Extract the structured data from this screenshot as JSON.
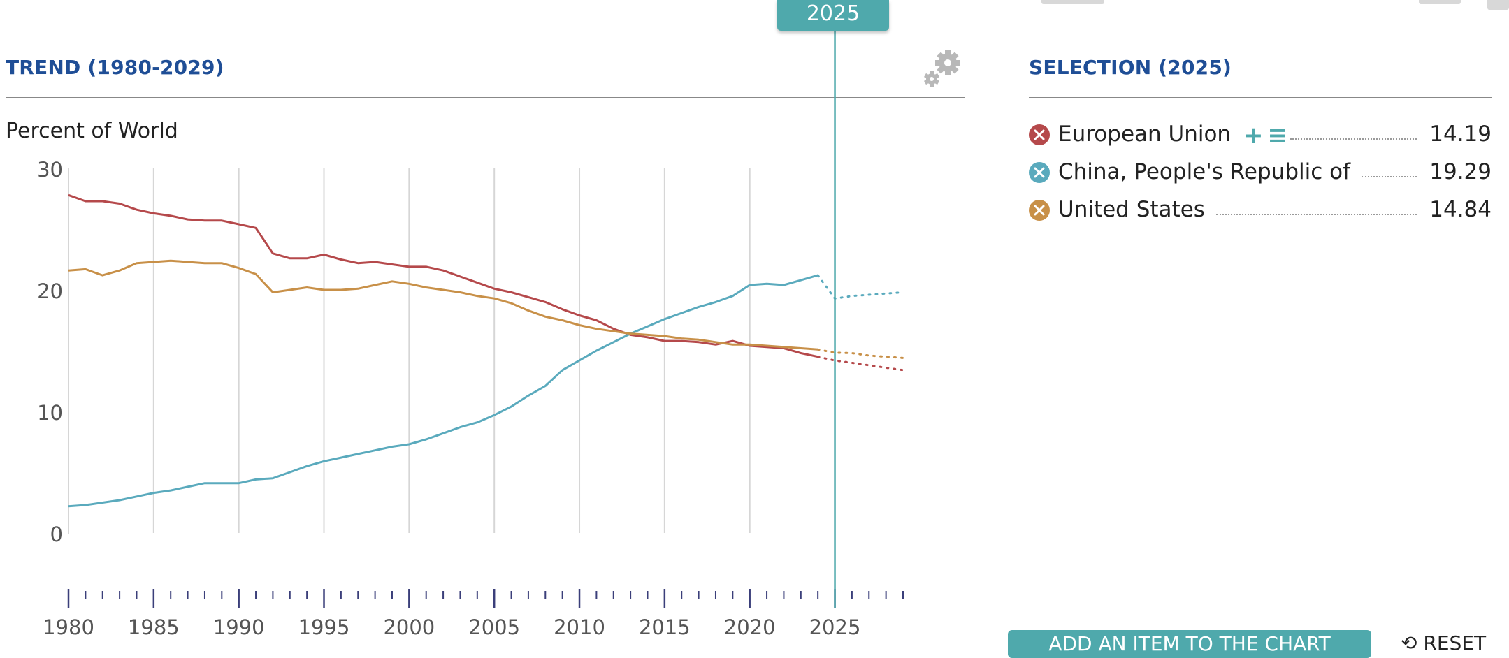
{
  "header": {
    "year_badge": "2025",
    "trend_title": "TREND (1980-2029)",
    "selection_title": "SELECTION (2025)",
    "unit_label": "Percent of World"
  },
  "legend": [
    {
      "name": "European Union",
      "value": "14.19",
      "color": "#b5494b",
      "has_tools": true
    },
    {
      "name": "China, People's Republic of",
      "value": "19.29",
      "color": "#5aaabd",
      "has_tools": false
    },
    {
      "name": "United States",
      "value": "14.84",
      "color": "#c89048",
      "has_tools": false
    }
  ],
  "actions": {
    "add_item_label": "ADD AN ITEM TO THE CHART",
    "reset_label": "RESET"
  },
  "colors": {
    "accent": "#4fa9ac",
    "title": "#1f4e96",
    "eu": "#b5494b",
    "china": "#5aaabd",
    "us": "#c89048"
  },
  "chart_data": {
    "type": "line",
    "title": "TREND (1980-2029)",
    "ylabel": "Percent of World",
    "xlabel": "",
    "xlim": [
      1980,
      2029
    ],
    "ylim": [
      0,
      30
    ],
    "yticks": [
      0,
      10,
      20,
      30
    ],
    "xticks": [
      1980,
      1985,
      1990,
      1995,
      2000,
      2005,
      2010,
      2015,
      2020,
      2025
    ],
    "selected_year": 2025,
    "projection_start": 2024,
    "grid": true,
    "series": [
      {
        "name": "European Union",
        "color": "#b5494b",
        "x": [
          1980,
          1981,
          1982,
          1983,
          1984,
          1985,
          1986,
          1987,
          1988,
          1989,
          1990,
          1991,
          1992,
          1993,
          1994,
          1995,
          1996,
          1997,
          1998,
          1999,
          2000,
          2001,
          2002,
          2003,
          2004,
          2005,
          2006,
          2007,
          2008,
          2009,
          2010,
          2011,
          2012,
          2013,
          2014,
          2015,
          2016,
          2017,
          2018,
          2019,
          2020,
          2021,
          2022,
          2023,
          2024,
          2025,
          2026,
          2027,
          2028,
          2029
        ],
        "values": [
          27.8,
          27.3,
          27.3,
          27.1,
          26.6,
          26.3,
          26.1,
          25.8,
          25.7,
          25.7,
          25.4,
          25.1,
          23.0,
          22.6,
          22.6,
          22.9,
          22.5,
          22.2,
          22.3,
          22.1,
          21.9,
          21.9,
          21.6,
          21.1,
          20.6,
          20.1,
          19.8,
          19.4,
          19.0,
          18.4,
          17.9,
          17.5,
          16.8,
          16.3,
          16.1,
          15.8,
          15.8,
          15.7,
          15.5,
          15.8,
          15.4,
          15.3,
          15.2,
          14.8,
          14.5,
          14.19,
          14.0,
          13.8,
          13.6,
          13.4
        ]
      },
      {
        "name": "China, People's Republic of",
        "color": "#5aaabd",
        "x": [
          1980,
          1981,
          1982,
          1983,
          1984,
          1985,
          1986,
          1987,
          1988,
          1989,
          1990,
          1991,
          1992,
          1993,
          1994,
          1995,
          1996,
          1997,
          1998,
          1999,
          2000,
          2001,
          2002,
          2003,
          2004,
          2005,
          2006,
          2007,
          2008,
          2009,
          2010,
          2011,
          2012,
          2013,
          2014,
          2015,
          2016,
          2017,
          2018,
          2019,
          2020,
          2021,
          2022,
          2023,
          2024,
          2025,
          2026,
          2027,
          2028,
          2029
        ],
        "values": [
          2.2,
          2.3,
          2.5,
          2.7,
          3.0,
          3.3,
          3.5,
          3.8,
          4.1,
          4.1,
          4.1,
          4.4,
          4.5,
          5.0,
          5.5,
          5.9,
          6.2,
          6.5,
          6.8,
          7.1,
          7.3,
          7.7,
          8.2,
          8.7,
          9.1,
          9.7,
          10.4,
          11.3,
          12.1,
          13.4,
          14.2,
          15.0,
          15.7,
          16.4,
          17.0,
          17.6,
          18.1,
          18.6,
          19.0,
          19.5,
          20.4,
          20.5,
          20.4,
          20.8,
          21.2,
          19.29,
          19.5,
          19.6,
          19.7,
          19.8
        ]
      },
      {
        "name": "United States",
        "color": "#c89048",
        "x": [
          1980,
          1981,
          1982,
          1983,
          1984,
          1985,
          1986,
          1987,
          1988,
          1989,
          1990,
          1991,
          1992,
          1993,
          1994,
          1995,
          1996,
          1997,
          1998,
          1999,
          2000,
          2001,
          2002,
          2003,
          2004,
          2005,
          2006,
          2007,
          2008,
          2009,
          2010,
          2011,
          2012,
          2013,
          2014,
          2015,
          2016,
          2017,
          2018,
          2019,
          2020,
          2021,
          2022,
          2023,
          2024,
          2025,
          2026,
          2027,
          2028,
          2029
        ],
        "values": [
          21.6,
          21.7,
          21.2,
          21.6,
          22.2,
          22.3,
          22.4,
          22.3,
          22.2,
          22.2,
          21.8,
          21.3,
          19.8,
          20.0,
          20.2,
          20.0,
          20.0,
          20.1,
          20.4,
          20.7,
          20.5,
          20.2,
          20.0,
          19.8,
          19.5,
          19.3,
          18.9,
          18.3,
          17.8,
          17.5,
          17.1,
          16.8,
          16.6,
          16.4,
          16.3,
          16.2,
          16.0,
          15.9,
          15.7,
          15.5,
          15.5,
          15.4,
          15.3,
          15.2,
          15.1,
          14.84,
          14.8,
          14.6,
          14.5,
          14.4
        ]
      }
    ]
  }
}
